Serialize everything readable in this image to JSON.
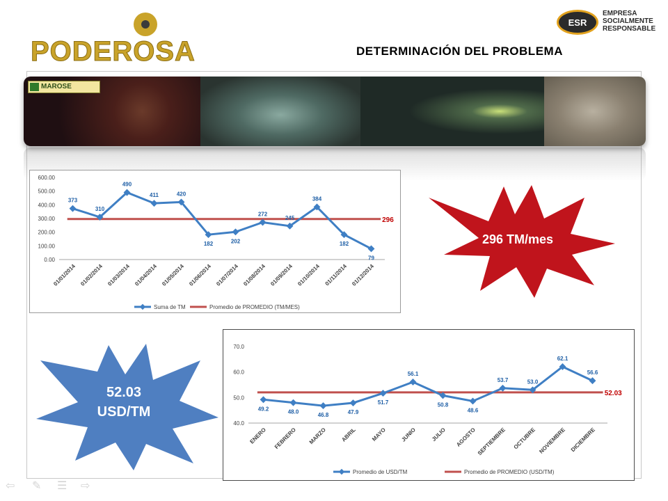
{
  "slide": {
    "title": "DETERMINACIÓN DEL PROBLEMA",
    "logo_left": "PODEROSA",
    "logo_right": {
      "badge": "ESR",
      "line1": "EMPRESA",
      "line2": "SOCIALMENTE",
      "line3": "RESPONSABLE"
    },
    "banner_tag": "MAROSE",
    "burst_tm": "296 TM/mes",
    "burst_usd_line1": "52.03",
    "burst_usd_line2": "USD/TM"
  },
  "colors": {
    "series_blue": "#3f7fc4",
    "average_red": "#c0504d",
    "burst_red": "#c0141c",
    "burst_blue": "#4f7fc1",
    "title_gold": "#c9a32a"
  },
  "nav_icons": [
    "back-arrow-icon",
    "pen-icon",
    "menu-icon",
    "forward-arrow-icon"
  ],
  "chart_data": [
    {
      "type": "line",
      "categories": [
        "01/01/2014",
        "01/02/2014",
        "01/03/2014",
        "01/04/2014",
        "01/05/2014",
        "01/06/2014",
        "01/07/2014",
        "01/08/2014",
        "01/09/2014",
        "01/10/2014",
        "01/11/2014",
        "01/12/2014"
      ],
      "series": [
        {
          "name": "Suma de TM",
          "values": [
            373,
            310,
            490,
            411,
            420,
            182,
            202,
            272,
            245,
            384,
            182,
            79
          ],
          "labels": [
            "373",
            "310",
            "490",
            "411",
            "420",
            "182",
            "202",
            "272",
            "245",
            "384",
            "182",
            "79"
          ]
        },
        {
          "name": "Promedio de PROMEDIO (TM/MES)",
          "values": [
            296,
            296,
            296,
            296,
            296,
            296,
            296,
            296,
            296,
            296,
            296,
            296
          ],
          "end_label": "296"
        }
      ],
      "ylim": [
        0,
        600
      ],
      "yticks": [
        0,
        100,
        200,
        300,
        400,
        500,
        600
      ],
      "ytick_labels": [
        "0.00",
        "100.00",
        "200.00",
        "300.00",
        "400.00",
        "500.00",
        "600.00"
      ],
      "grid": false,
      "legend": "bottom"
    },
    {
      "type": "line",
      "categories": [
        "ENERO",
        "FEBRERO",
        "MARZO",
        "ABRIL",
        "MAYO",
        "JUNIO",
        "JULIO",
        "AGOSTO",
        "SEPTIEMBRE",
        "OCTUBRE",
        "NOVIEMBRE",
        "DICIEMBRE"
      ],
      "series": [
        {
          "name": "Promedio de USD/TM",
          "values": [
            49.2,
            48.0,
            46.8,
            47.9,
            51.7,
            56.1,
            50.8,
            48.6,
            53.7,
            53.0,
            62.1,
            56.6
          ],
          "labels": [
            "49.2",
            "48.0",
            "46.8",
            "47.9",
            "51.7",
            "56.1",
            "50.8",
            "48.6",
            "53.7",
            "53.0",
            "62.1",
            "56.6"
          ]
        },
        {
          "name": "Promedio de PROMEDIO (USD/TM)",
          "values": [
            52.03,
            52.03,
            52.03,
            52.03,
            52.03,
            52.03,
            52.03,
            52.03,
            52.03,
            52.03,
            52.03,
            52.03
          ],
          "end_label": "52.03"
        }
      ],
      "ylim": [
        40,
        70
      ],
      "yticks": [
        40,
        50,
        60,
        70
      ],
      "ytick_labels": [
        "40.0",
        "50.0",
        "60.0",
        "70.0"
      ],
      "grid": false,
      "legend": "bottom"
    }
  ]
}
